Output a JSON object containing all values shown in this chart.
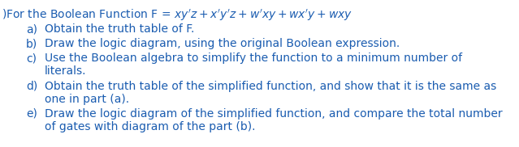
{
  "background_color": "#ffffff",
  "text_color": "#1a5cb0",
  "fig_width": 6.39,
  "fig_height": 1.82,
  "dpi": 100,
  "font_family": "DejaVu Sans",
  "title_fontsize": 10.0,
  "body_fontsize": 10.0,
  "items": [
    {
      "label": "a)",
      "text": "Obtain the truth table of F."
    },
    {
      "label": "b)",
      "text": "Draw the logic diagram, using the original Boolean expression."
    },
    {
      "label": "c)",
      "text": "Use the Boolean algebra to simplify the function to a minimum number of\n        literals."
    },
    {
      "label": "d)",
      "text": "Obtain the truth table of the simplified function, and show that it is the same as\n        one in part (a)."
    },
    {
      "label": "e)",
      "text": "Draw the logic diagram of the simplified function, and compare the total number\n        of gates with diagram of the part (b)."
    }
  ]
}
